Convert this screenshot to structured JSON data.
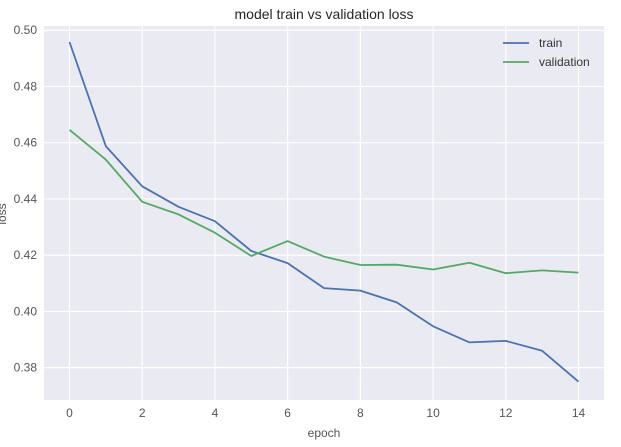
{
  "chart_data": {
    "type": "line",
    "title": "model train vs validation loss",
    "xlabel": "epoch",
    "ylabel": "loss",
    "x": [
      0,
      1,
      2,
      3,
      4,
      5,
      6,
      7,
      8,
      9,
      10,
      11,
      12,
      13,
      14
    ],
    "series": [
      {
        "name": "train",
        "color": "#4C72B0",
        "values": [
          0.4958,
          0.4588,
          0.4445,
          0.4372,
          0.4321,
          0.4215,
          0.4172,
          0.4083,
          0.4074,
          0.4032,
          0.3947,
          0.389,
          0.3895,
          0.386,
          0.375
        ]
      },
      {
        "name": "validation",
        "color": "#55A868",
        "values": [
          0.4646,
          0.454,
          0.439,
          0.4345,
          0.428,
          0.4197,
          0.425,
          0.4195,
          0.4165,
          0.4166,
          0.4149,
          0.4173,
          0.4136,
          0.4146,
          0.4138
        ]
      }
    ],
    "xlim": [
      -0.7,
      14.7
    ],
    "ylim": [
      0.3685,
      0.5015
    ],
    "xticks": [
      0,
      2,
      4,
      6,
      8,
      10,
      12,
      14
    ],
    "yticks": [
      0.38,
      0.4,
      0.42,
      0.44,
      0.46,
      0.48,
      0.5
    ],
    "ytick_labels": [
      "0.38",
      "0.40",
      "0.42",
      "0.44",
      "0.46",
      "0.48",
      "0.50"
    ],
    "grid": true,
    "legend_position": "top-right",
    "background": "#EAEAF2"
  }
}
